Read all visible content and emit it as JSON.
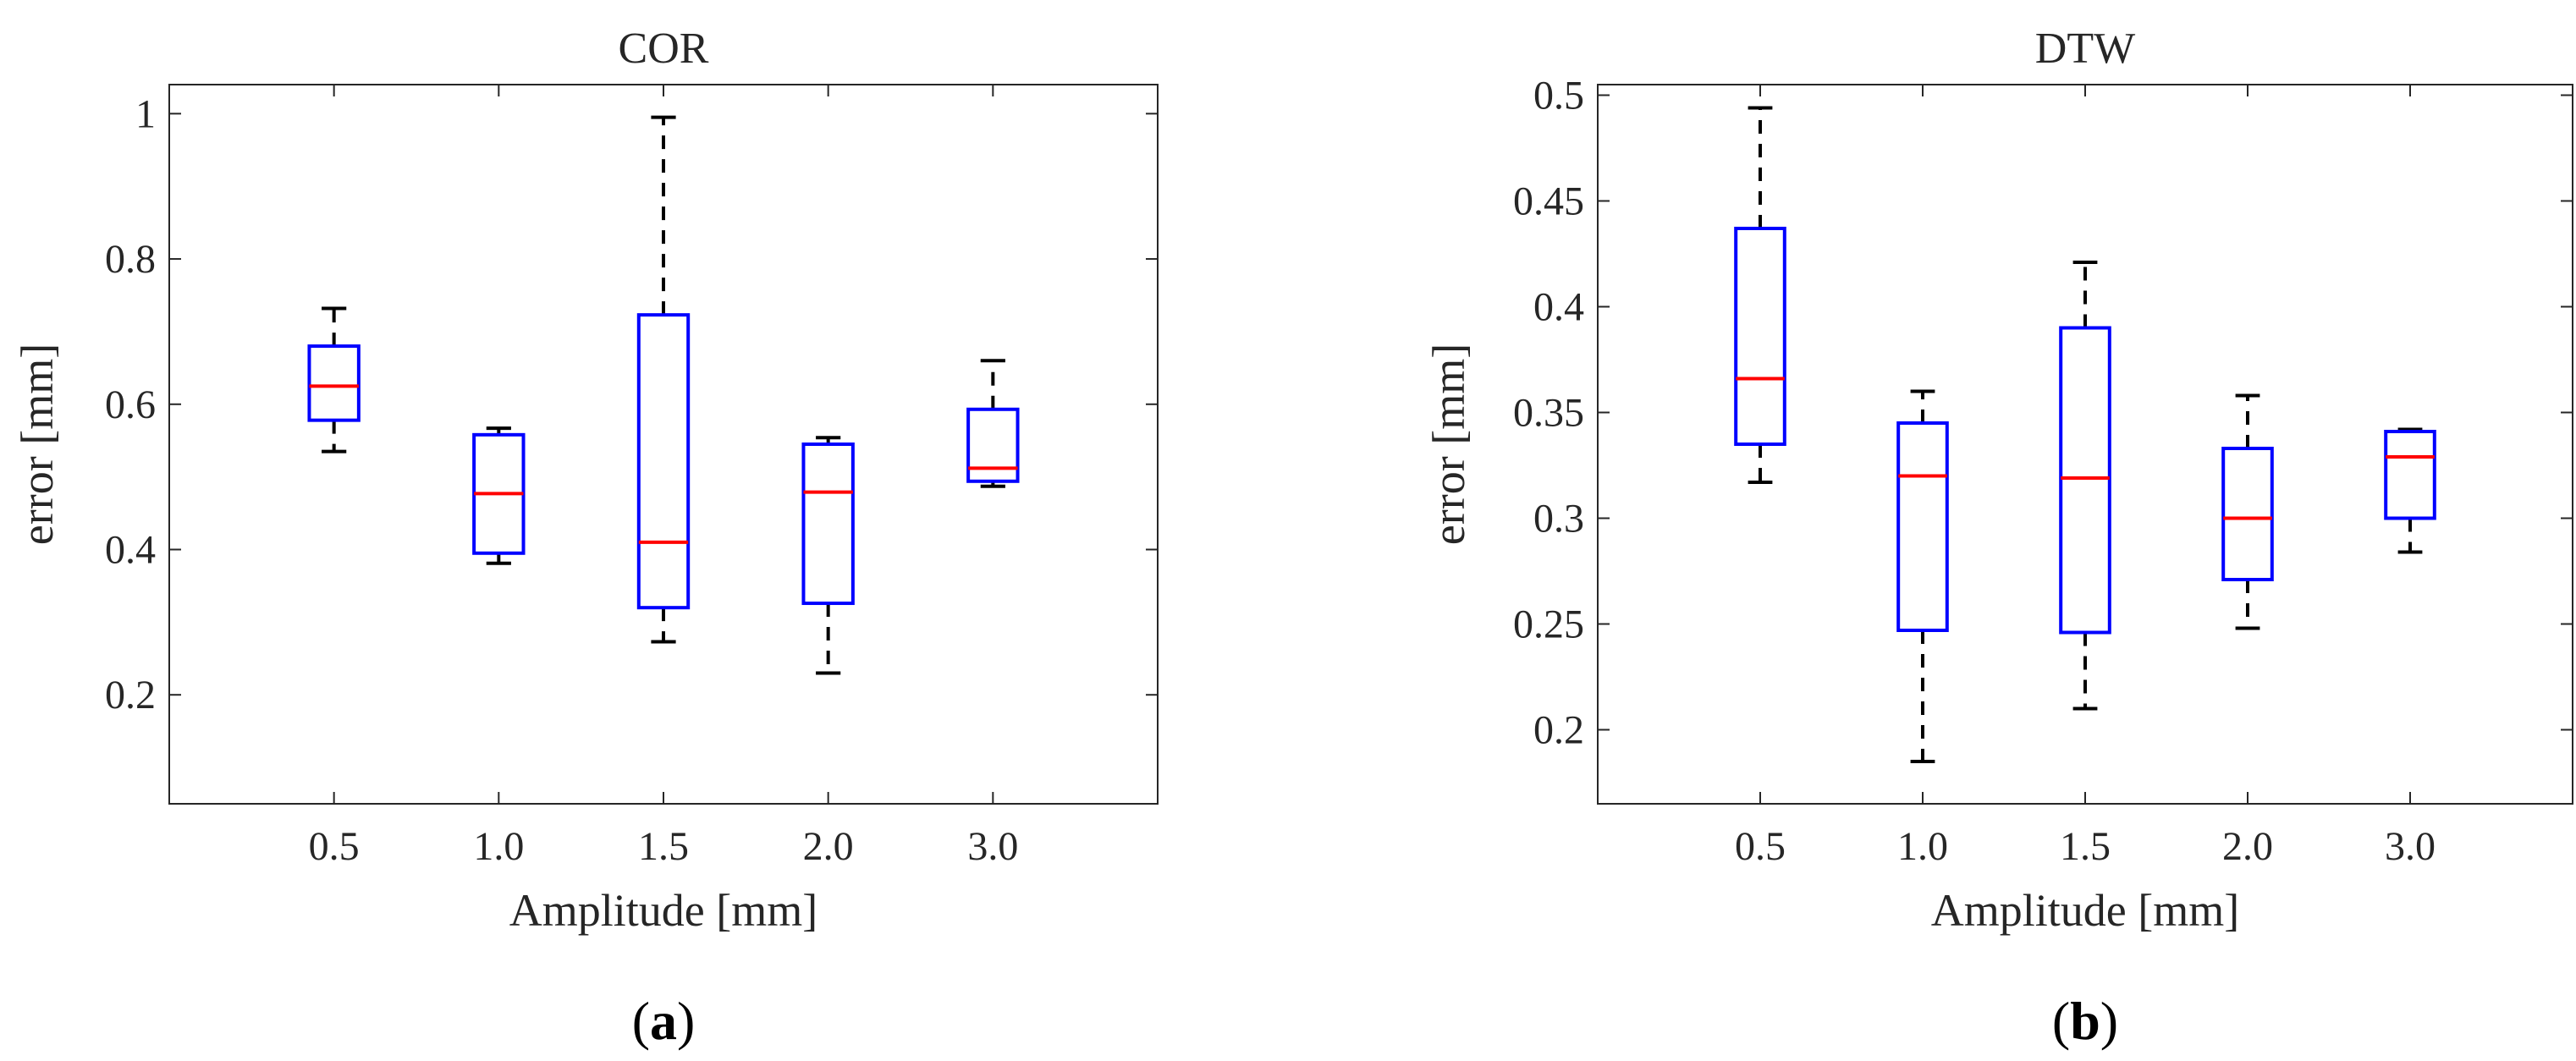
{
  "chart_data": [
    {
      "type": "box",
      "panel_label": {
        "open": "(",
        "letter": "a",
        "close": ")"
      },
      "title": "COR",
      "xlabel": "Amplitude [mm]",
      "ylabel": "error [mm]",
      "categories": [
        "0.5",
        "1.0",
        "1.5",
        "2.0",
        "3.0"
      ],
      "ylim": [
        0.05,
        1.04
      ],
      "yticks": [
        0.2,
        0.4,
        0.6,
        0.8,
        1.0
      ],
      "ytick_labels": [
        "0.2",
        "0.4",
        "0.6",
        "0.8",
        "1"
      ],
      "boxes": [
        {
          "min": 0.535,
          "q1": 0.578,
          "median": 0.625,
          "q3": 0.68,
          "max": 0.732
        },
        {
          "min": 0.381,
          "q1": 0.395,
          "median": 0.477,
          "q3": 0.558,
          "max": 0.567
        },
        {
          "min": 0.273,
          "q1": 0.32,
          "median": 0.41,
          "q3": 0.723,
          "max": 0.995
        },
        {
          "min": 0.23,
          "q1": 0.326,
          "median": 0.479,
          "q3": 0.545,
          "max": 0.554
        },
        {
          "min": 0.487,
          "q1": 0.494,
          "median": 0.512,
          "q3": 0.593,
          "max": 0.66
        }
      ]
    },
    {
      "type": "box",
      "panel_label": {
        "open": "(",
        "letter": "b",
        "close": ")"
      },
      "title": "DTW",
      "xlabel": "Amplitude [mm]",
      "ylabel": "error [mm]",
      "categories": [
        "0.5",
        "1.0",
        "1.5",
        "2.0",
        "3.0"
      ],
      "ylim": [
        0.165,
        0.505
      ],
      "yticks": [
        0.2,
        0.25,
        0.3,
        0.35,
        0.4,
        0.45,
        0.5
      ],
      "ytick_labels": [
        "0.2",
        "0.25",
        "0.3",
        "0.35",
        "0.4",
        "0.45",
        "0.5"
      ],
      "boxes": [
        {
          "min": 0.317,
          "q1": 0.335,
          "median": 0.366,
          "q3": 0.437,
          "max": 0.494
        },
        {
          "min": 0.185,
          "q1": 0.247,
          "median": 0.32,
          "q3": 0.345,
          "max": 0.36
        },
        {
          "min": 0.21,
          "q1": 0.246,
          "median": 0.319,
          "q3": 0.39,
          "max": 0.421
        },
        {
          "min": 0.248,
          "q1": 0.271,
          "median": 0.3,
          "q3": 0.333,
          "max": 0.358
        },
        {
          "min": 0.284,
          "q1": 0.3,
          "median": 0.329,
          "q3": 0.341,
          "max": 0.342
        }
      ]
    }
  ],
  "colors": {
    "box": "#0000ff",
    "median": "#ff0000",
    "whisker": "#000000",
    "axis": "#262626"
  }
}
